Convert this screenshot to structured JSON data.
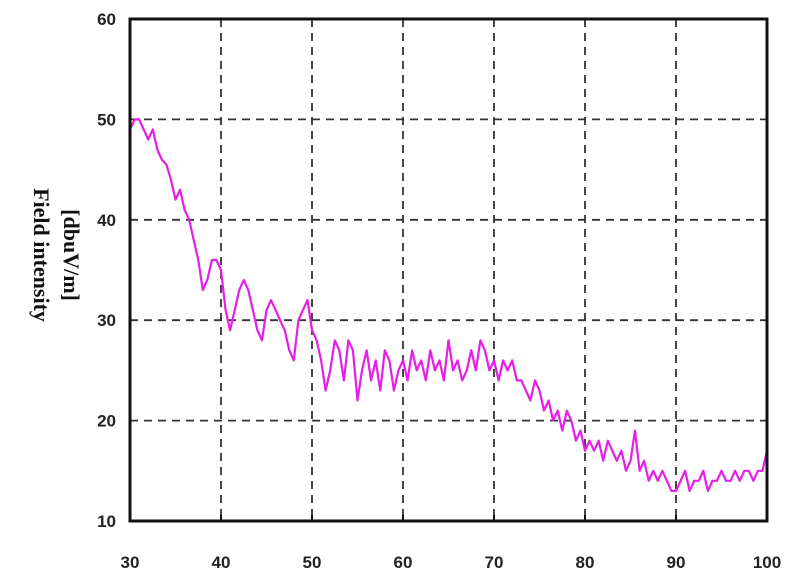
{
  "chart_data": {
    "type": "line",
    "title": "",
    "xlabel": "",
    "ylabel_lines": [
      "Field intensity",
      "[dbuV/m]"
    ],
    "xlim": [
      30,
      100
    ],
    "ylim": [
      10,
      60
    ],
    "xticks": [
      30,
      40,
      50,
      60,
      70,
      80,
      90,
      100
    ],
    "yticks": [
      10,
      20,
      30,
      40,
      50,
      60
    ],
    "grid": true,
    "series_color": "#e61ee6",
    "series": [
      {
        "x": [
          30,
          30.5,
          31,
          31.5,
          32,
          32.5,
          33,
          33.5,
          34,
          34.5,
          35,
          35.5,
          36,
          36.5,
          37,
          37.5,
          38,
          38.5,
          39,
          39.5,
          40,
          40.5,
          41,
          41.5,
          42,
          42.5,
          43,
          43.5,
          44,
          44.5,
          45,
          45.5,
          46,
          46.5,
          47,
          47.5,
          48,
          48.5,
          49,
          49.5,
          50,
          50.5,
          51,
          51.5,
          52,
          52.5,
          53,
          53.5,
          54,
          54.5,
          55,
          55.5,
          56,
          56.5,
          57,
          57.5,
          58,
          58.5,
          59,
          59.5,
          60,
          60.5,
          61,
          61.5,
          62,
          62.5,
          63,
          63.5,
          64,
          64.5,
          65,
          65.5,
          66,
          66.5,
          67,
          67.5,
          68,
          68.5,
          69,
          69.5,
          70,
          70.5,
          71,
          71.5,
          72,
          72.5,
          73,
          73.5,
          74,
          74.5,
          75,
          75.5,
          76,
          76.5,
          77,
          77.5,
          78,
          78.5,
          79,
          79.5,
          80,
          80.5,
          81,
          81.5,
          82,
          82.5,
          83,
          83.5,
          84,
          84.5,
          85,
          85.5,
          86,
          86.5,
          87,
          87.5,
          88,
          88.5,
          89,
          89.5,
          90,
          90.5,
          91,
          91.5,
          92,
          92.5,
          93,
          93.5,
          94,
          94.5,
          95,
          95.5,
          96,
          96.5,
          97,
          97.5,
          98,
          98.5,
          99,
          99.5,
          100
        ],
        "values": [
          49,
          50,
          50,
          49,
          48,
          49,
          47,
          46,
          45.5,
          44,
          42,
          43,
          41,
          40,
          38,
          36,
          33,
          34,
          36,
          36,
          35,
          31,
          29,
          31,
          33,
          34,
          33,
          31,
          29,
          28,
          31,
          32,
          31,
          30,
          29,
          27,
          26,
          30,
          31,
          32,
          29,
          28,
          26,
          23,
          25,
          28,
          27,
          24,
          28,
          27,
          22,
          25,
          27,
          24,
          26,
          23,
          27,
          26,
          23,
          25,
          26,
          24,
          27,
          25,
          26,
          24,
          27,
          25,
          26,
          24,
          28,
          25,
          26,
          24,
          25,
          27,
          25,
          28,
          27,
          25,
          26,
          24,
          26,
          25,
          26,
          24,
          24,
          23,
          22,
          24,
          23,
          21,
          22,
          20,
          21,
          19,
          21,
          20,
          18,
          19,
          17,
          18,
          17,
          18,
          16,
          18,
          17,
          16,
          17,
          15,
          16,
          19,
          15,
          16,
          14,
          15,
          14,
          15,
          14,
          13,
          13,
          14,
          15,
          13,
          14,
          14,
          15,
          13,
          14,
          14,
          15,
          14,
          14,
          15,
          14,
          15,
          15,
          14,
          15,
          15,
          17
        ]
      }
    ]
  }
}
